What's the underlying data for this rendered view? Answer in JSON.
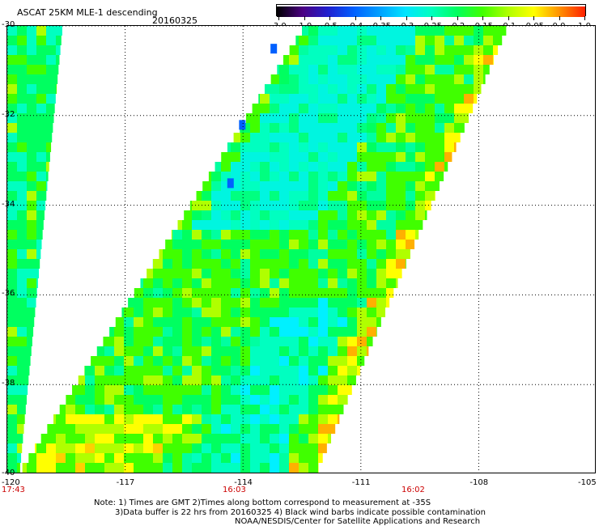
{
  "header": {
    "title": "ASCAT 25KM MLE-1 descending",
    "date": "20160325"
  },
  "colorbar": {
    "labels": [
      "-3.0",
      "-1.0",
      "-0.5",
      "-0.4",
      "-0.35",
      "-0.3",
      "-0.25",
      "-0.2",
      "-0.15",
      "-0.1",
      "-0.05",
      "0.0",
      "1.0"
    ],
    "colors": [
      "#000000",
      "#4b0082",
      "#2020d0",
      "#0060ff",
      "#00a0ff",
      "#00e5ff",
      "#00ffc0",
      "#00ff60",
      "#40ff00",
      "#b0ff00",
      "#ffff00",
      "#ff9000",
      "#ff2000"
    ]
  },
  "axes": {
    "lat_labels": [
      "-30",
      "-32",
      "-34",
      "-36",
      "-38",
      "-40"
    ],
    "lon_labels": [
      "-120",
      "-117",
      "-114",
      "-111",
      "-108",
      "-105"
    ],
    "lat_range": [
      -40,
      -30
    ],
    "lon_range": [
      -120,
      -105
    ]
  },
  "time_labels": [
    "17:43",
    "16:03",
    "16:02"
  ],
  "notes": [
    "Note: 1) Times are GMT 2)Times along bottom correspond to measurement at -35S",
    "3)Data buffer is 22 hrs from 20160325 4) Black wind barbs indicate possible contamination",
    "NOAA/NESDIS/Center for Satellite Applications and Research"
  ],
  "map": {
    "swaths": [
      {
        "name": "left-swath",
        "lon_west_north": -120,
        "lon_east_north": -118.6,
        "lon_west_south": -120,
        "lon_east_south": -119.7
      },
      {
        "name": "main-swath",
        "lon_west_north": -112.5,
        "lon_east_north": -107.3,
        "lon_west_south": -119.8,
        "lon_east_south": -112.2
      }
    ],
    "dominant_colors": [
      "#00ff60",
      "#00ffc0",
      "#40ff00",
      "#b0ff00",
      "#ffff00",
      "#00e5ff"
    ]
  }
}
